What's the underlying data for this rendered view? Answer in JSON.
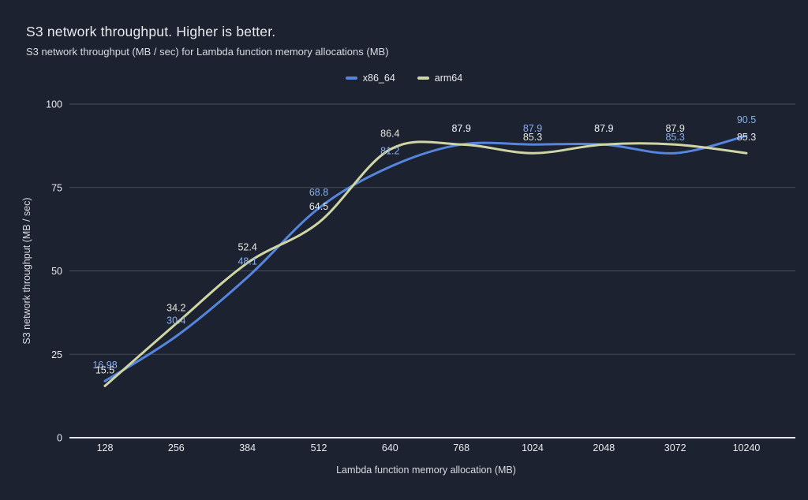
{
  "header": {
    "title": "S3 network throughput. Higher is better.",
    "subtitle": "S3 network throughput (MB / sec) for Lambda function memory allocations (MB)"
  },
  "legend": {
    "items": [
      {
        "label": "x86_64",
        "color": "#5585dd"
      },
      {
        "label": "arm64",
        "color": "#cfd6a4"
      }
    ]
  },
  "colors": {
    "background": "#1c2230",
    "grid_line": "#474d59",
    "zero_axis_line": "#e3e6ea",
    "tick_text": "#e8eaed",
    "axis_title_text": "#d8dbe0",
    "x86_line": "#5585dd",
    "x86_label": "#8ab0f0",
    "arm_line": "#cfd6a4",
    "arm_label": "#e7e9e4"
  },
  "chart_data": {
    "type": "line",
    "title": "S3 network throughput. Higher is better.",
    "subtitle": "S3 network throughput (MB / sec) for Lambda function memory allocations (MB)",
    "categories": [
      "128",
      "256",
      "384",
      "512",
      "640",
      "768",
      "1024",
      "2048",
      "3072",
      "10240"
    ],
    "series": [
      {
        "name": "x86_64",
        "color": "#5585dd",
        "label_color": "#8ab0f0",
        "values": [
          16.98,
          30.4,
          48.1,
          68.8,
          81.2,
          87.9,
          87.9,
          87.9,
          85.3,
          90.5
        ],
        "labels": [
          "16.98",
          "30.4",
          "48.1",
          "68.8",
          "81.2",
          "87.9",
          "87.9",
          "87.9",
          "85.3",
          "90.5"
        ]
      },
      {
        "name": "arm64",
        "color": "#cfd6a4",
        "label_color": "#e7e9e4",
        "values": [
          15.5,
          34.2,
          52.4,
          64.5,
          86.4,
          87.9,
          85.3,
          87.9,
          87.9,
          85.3
        ],
        "labels": [
          "15.5",
          "34.2",
          "52.4",
          "64.5",
          "86.4",
          "87.9",
          "85.3",
          "87.9",
          "87.9",
          "85.3"
        ]
      }
    ],
    "xlabel": "Lambda function memory allocation (MB)",
    "ylabel": "S3 network throughput (MB / sec)",
    "yticks": [
      0,
      25,
      50,
      75,
      100
    ],
    "ylim": [
      0,
      100
    ],
    "grid": true,
    "legend_position": "top",
    "curve": "smooth"
  }
}
